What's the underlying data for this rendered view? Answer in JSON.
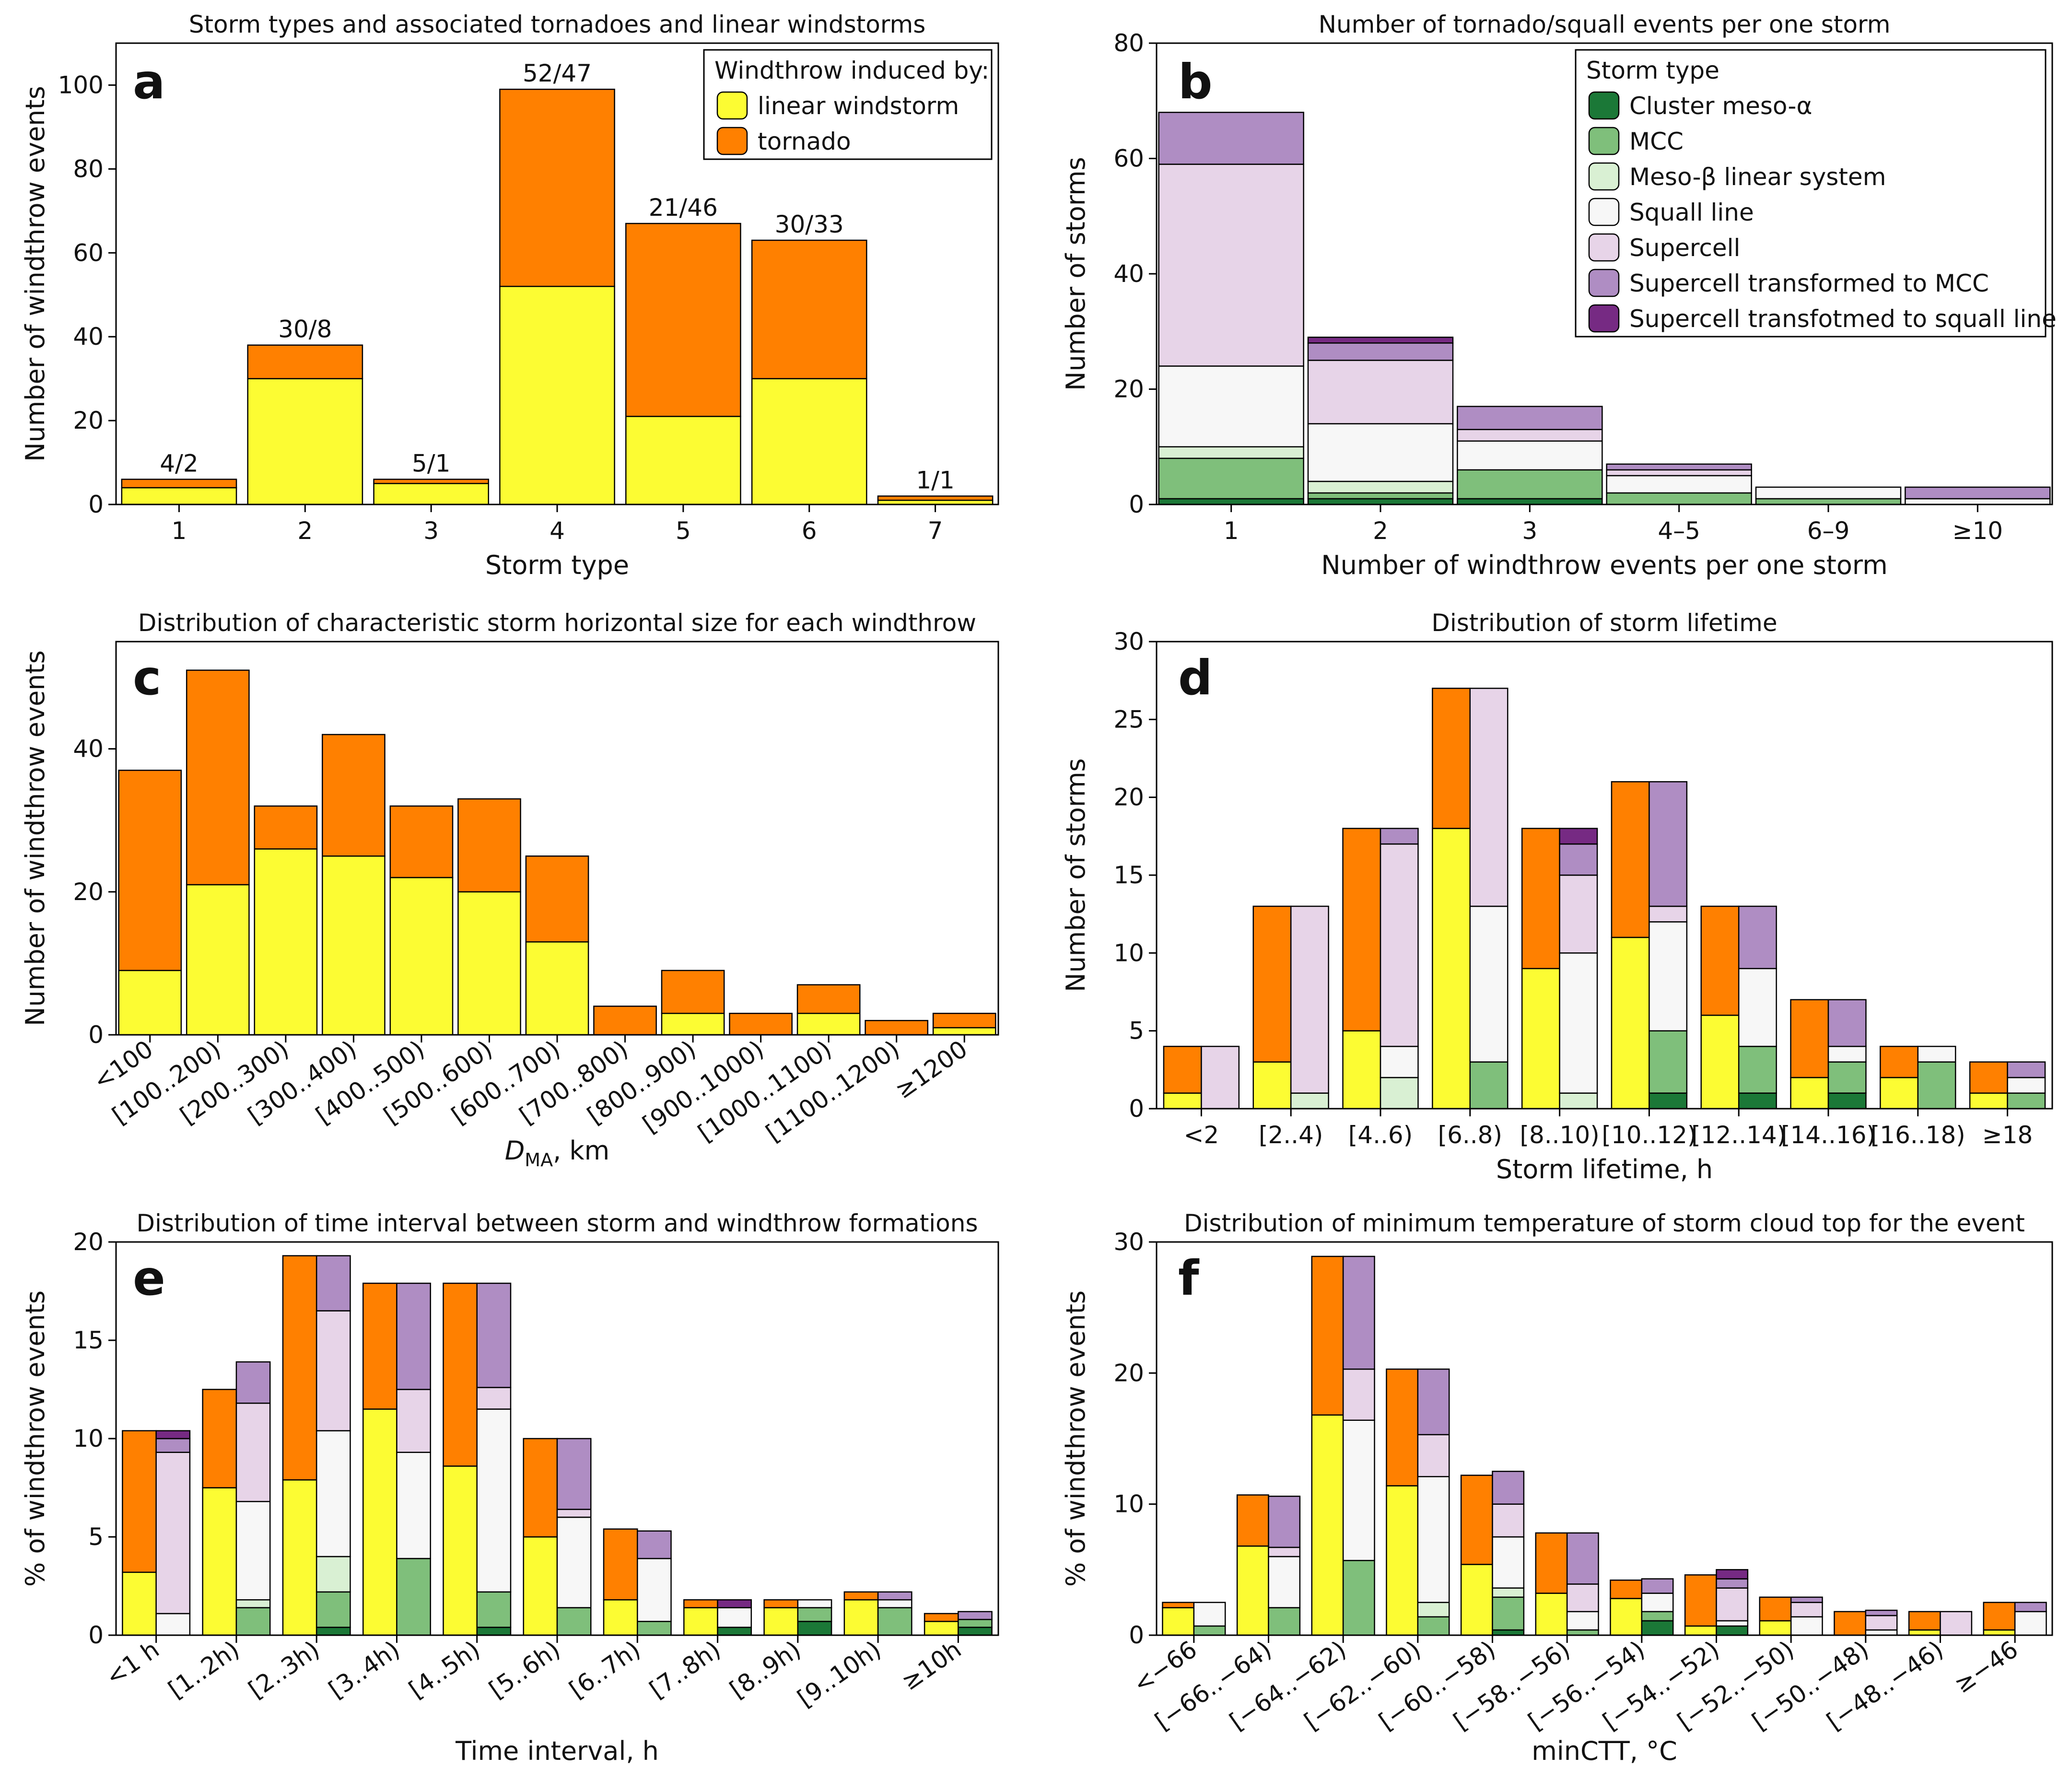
{
  "colors": {
    "linear": "#fcfc33",
    "tornado": "#ff8000",
    "cluster": "#1b7837",
    "mcc": "#7fbf7b",
    "mesobeta": "#d9f0d3",
    "squall": "#f7f7f7",
    "supercell": "#e7d4e8",
    "sc_to_mcc": "#af8dc3",
    "sc_to_squall": "#762a83"
  },
  "chart_data": [
    {
      "id": "a",
      "letter": "a",
      "type": "bar",
      "stacked": true,
      "title": "Storm types and associated tornadoes and linear windstorms",
      "xlabel": "Storm type",
      "ylabel": "Number of windthrow events",
      "ylim": [
        0,
        110
      ],
      "yticks": [
        0,
        20,
        40,
        60,
        80,
        100
      ],
      "categories": [
        "1",
        "2",
        "3",
        "4",
        "5",
        "6",
        "7"
      ],
      "series": [
        {
          "name": "linear windstorm",
          "color": "linear",
          "values": [
            4,
            30,
            5,
            52,
            21,
            30,
            1
          ]
        },
        {
          "name": "tornado",
          "color": "tornado",
          "values": [
            2,
            8,
            1,
            47,
            46,
            33,
            1
          ]
        }
      ],
      "bar_labels": [
        "4/2",
        "30/8",
        "5/1",
        "52/47",
        "21/46",
        "30/33",
        "1/1"
      ],
      "legend": {
        "title": "Windthrow induced by:",
        "position": "top-right"
      }
    },
    {
      "id": "b",
      "letter": "b",
      "type": "bar",
      "stacked": true,
      "title": "Number of tornado/squall events per one storm",
      "xlabel": "Number of windthrow events per one storm",
      "ylabel": "Number of storms",
      "ylim": [
        0,
        80
      ],
      "yticks": [
        0,
        20,
        40,
        60,
        80
      ],
      "categories": [
        "1",
        "2",
        "3",
        "4–5",
        "6–9",
        "≥10"
      ],
      "series": [
        {
          "name": "Cluster meso-α",
          "color": "cluster",
          "values": [
            1,
            1,
            1,
            0,
            0,
            0
          ]
        },
        {
          "name": "MCC",
          "color": "mcc",
          "values": [
            7,
            1,
            5,
            2,
            1,
            0
          ]
        },
        {
          "name": "Meso-β linear system",
          "color": "mesobeta",
          "values": [
            2,
            2,
            0,
            0,
            0,
            0
          ]
        },
        {
          "name": "Squall line",
          "color": "squall",
          "values": [
            14,
            10,
            5,
            3,
            2,
            1
          ]
        },
        {
          "name": "Supercell",
          "color": "supercell",
          "values": [
            35,
            11,
            2,
            1,
            0,
            0
          ]
        },
        {
          "name": "Supercell transformed to MCC",
          "color": "sc_to_mcc",
          "values": [
            9,
            3,
            4,
            1,
            0,
            2
          ]
        },
        {
          "name": "Supercell transfotmed to squall line",
          "color": "sc_to_squall",
          "values": [
            0,
            1,
            0,
            0,
            0,
            0
          ]
        }
      ],
      "legend": {
        "title": "Storm type",
        "position": "top-right"
      }
    },
    {
      "id": "c",
      "letter": "c",
      "type": "bar",
      "stacked": true,
      "title": "Distribution of characteristic storm horizontal size for each windthrow",
      "xlabel_main": "D",
      "xlabel_sub": "MA",
      "xlabel_rest": ", km",
      "ylabel": "Number of windthrow events",
      "ylim": [
        0,
        55
      ],
      "yticks": [
        0,
        20,
        40
      ],
      "categories": [
        "<100",
        "[100..200)",
        "[200..300)",
        "[300..400)",
        "[400..500)",
        "[500..600)",
        "[600..700)",
        "[700..800)",
        "[800..900)",
        "[900..1000)",
        "[1000..1100)",
        "[1100..1200)",
        "≥1200"
      ],
      "series": [
        {
          "name": "linear windstorm",
          "color": "linear",
          "values": [
            9,
            21,
            26,
            25,
            22,
            20,
            13,
            0,
            3,
            0,
            3,
            0,
            1
          ]
        },
        {
          "name": "tornado",
          "color": "tornado",
          "values": [
            28,
            30,
            6,
            17,
            10,
            13,
            12,
            4,
            6,
            3,
            4,
            2,
            2
          ]
        }
      ]
    },
    {
      "id": "d",
      "letter": "d",
      "type": "bar",
      "stacked": true,
      "paired": true,
      "title": "Distribution of storm lifetime",
      "xlabel": "Storm lifetime, h",
      "ylabel": "Number of storms",
      "ylim": [
        0,
        30
      ],
      "yticks": [
        0,
        5,
        10,
        15,
        20,
        25,
        30
      ],
      "categories": [
        "<2",
        "[2..4)",
        "[4..6)",
        "[6..8)",
        "[8..10)",
        "[10..12)",
        "[12..14)",
        "[14..16)",
        "[16..18)",
        "≥18"
      ],
      "left_series": [
        {
          "name": "linear windstorm",
          "color": "linear",
          "values": [
            1,
            3,
            5,
            18,
            9,
            11,
            6,
            2,
            2,
            1
          ]
        },
        {
          "name": "tornado",
          "color": "tornado",
          "values": [
            3,
            10,
            13,
            9,
            9,
            10,
            7,
            5,
            2,
            2
          ]
        }
      ],
      "right_series": [
        {
          "name": "Cluster meso-α",
          "color": "cluster",
          "values": [
            0,
            0,
            0,
            0,
            0,
            1,
            1,
            1,
            0,
            0
          ]
        },
        {
          "name": "MCC",
          "color": "mcc",
          "values": [
            0,
            0,
            0,
            3,
            0,
            4,
            3,
            2,
            3,
            1
          ]
        },
        {
          "name": "Meso-β linear system",
          "color": "mesobeta",
          "values": [
            0,
            1,
            2,
            0,
            1,
            0,
            0,
            0,
            0,
            0
          ]
        },
        {
          "name": "Squall line",
          "color": "squall",
          "values": [
            0,
            0,
            2,
            10,
            9,
            7,
            5,
            1,
            1,
            1
          ]
        },
        {
          "name": "Supercell",
          "color": "supercell",
          "values": [
            4,
            12,
            13,
            14,
            5,
            1,
            0,
            0,
            0,
            0
          ]
        },
        {
          "name": "Supercell transformed to MCC",
          "color": "sc_to_mcc",
          "values": [
            0,
            0,
            1,
            0,
            2,
            8,
            4,
            3,
            0,
            1
          ]
        },
        {
          "name": "Supercell transfotmed to squall line",
          "color": "sc_to_squall",
          "values": [
            0,
            0,
            0,
            0,
            1,
            0,
            0,
            0,
            0,
            0
          ]
        }
      ]
    },
    {
      "id": "e",
      "letter": "e",
      "type": "bar",
      "stacked": true,
      "paired": true,
      "title": "Distribution of time interval between storm and windthrow formations",
      "xlabel": "Time interval, h",
      "ylabel": "% of windthrow events",
      "ylim": [
        0,
        20
      ],
      "yticks": [
        0,
        5,
        10,
        15,
        20
      ],
      "categories": [
        "<1 h",
        "[1..2h)",
        "[2..3h)",
        "[3..4h)",
        "[4..5h)",
        "[5..6h)",
        "[6..7h)",
        "[7..8h)",
        "[8..9h)",
        "[9..10h)",
        "≥10h"
      ],
      "left_series": [
        {
          "name": "linear windstorm",
          "color": "linear",
          "values": [
            3.2,
            7.5,
            7.9,
            11.5,
            8.6,
            5.0,
            1.8,
            1.4,
            1.4,
            1.8,
            0.7
          ]
        },
        {
          "name": "tornado",
          "color": "tornado",
          "values": [
            7.2,
            5.0,
            11.4,
            6.4,
            9.3,
            5.0,
            3.6,
            0.4,
            0.4,
            0.4,
            0.4
          ]
        }
      ],
      "right_series": [
        {
          "name": "Cluster meso-α",
          "color": "cluster",
          "values": [
            0,
            0,
            0.4,
            0,
            0.4,
            0,
            0,
            0.4,
            0.7,
            0,
            0.4
          ]
        },
        {
          "name": "MCC",
          "color": "mcc",
          "values": [
            0,
            1.4,
            1.8,
            3.9,
            1.8,
            1.4,
            0.7,
            0,
            0.7,
            1.4,
            0.4
          ]
        },
        {
          "name": "Meso-β linear system",
          "color": "mesobeta",
          "values": [
            0,
            0.4,
            1.8,
            0,
            0,
            0,
            0,
            0,
            0,
            0,
            0
          ]
        },
        {
          "name": "Squall line",
          "color": "squall",
          "values": [
            1.1,
            5.0,
            6.4,
            5.4,
            9.3,
            4.6,
            3.2,
            1.0,
            0.4,
            0.4,
            0
          ]
        },
        {
          "name": "Supercell",
          "color": "supercell",
          "values": [
            8.2,
            5.0,
            6.1,
            3.2,
            1.1,
            0.4,
            0,
            0,
            0,
            0,
            0
          ]
        },
        {
          "name": "Supercell transformed to MCC",
          "color": "sc_to_mcc",
          "values": [
            0.7,
            2.1,
            2.8,
            5.4,
            5.3,
            3.6,
            1.4,
            0,
            0,
            0.4,
            0.4
          ]
        },
        {
          "name": "Supercell transfotmed to squall line",
          "color": "sc_to_squall",
          "values": [
            0.4,
            0,
            0,
            0,
            0,
            0,
            0,
            0.4,
            0,
            0,
            0
          ]
        }
      ]
    },
    {
      "id": "f",
      "letter": "f",
      "type": "bar",
      "stacked": true,
      "paired": true,
      "title": "Distribution of minimum temperature of storm cloud top for the event",
      "xlabel": "minCTT, °C",
      "ylabel": "% of windthrow events",
      "ylim": [
        0,
        30
      ],
      "yticks": [
        0,
        10,
        20,
        30
      ],
      "categories": [
        "<−66",
        "[−66..−64)",
        "[−64..−62)",
        "[−62..−60)",
        "[−60..−58)",
        "[−58..−56)",
        "[−56..−54)",
        "[−54..−52)",
        "[−52..−50)",
        "[−50..−48)",
        "[−48..−46)",
        "≥−46"
      ],
      "left_series": [
        {
          "name": "linear windstorm",
          "color": "linear",
          "values": [
            2.1,
            6.8,
            16.8,
            11.4,
            5.4,
            3.2,
            2.8,
            0.7,
            1.1,
            0,
            0.4,
            0.4
          ]
        },
        {
          "name": "tornado",
          "color": "tornado",
          "values": [
            0.4,
            3.9,
            12.1,
            8.9,
            6.8,
            4.6,
            1.4,
            3.9,
            1.8,
            1.8,
            1.4,
            2.1
          ]
        }
      ],
      "right_series": [
        {
          "name": "Cluster meso-α",
          "color": "cluster",
          "values": [
            0,
            0,
            0,
            0,
            0.4,
            0,
            1.1,
            0.7,
            0,
            0,
            0,
            0
          ]
        },
        {
          "name": "MCC",
          "color": "mcc",
          "values": [
            0.7,
            2.1,
            5.7,
            1.4,
            2.5,
            0.4,
            0.7,
            0,
            0,
            0,
            0,
            0
          ]
        },
        {
          "name": "Meso-β linear system",
          "color": "mesobeta",
          "values": [
            0,
            0,
            0,
            1.1,
            0.7,
            0,
            0,
            0,
            0,
            0,
            0,
            0
          ]
        },
        {
          "name": "Squall line",
          "color": "squall",
          "values": [
            1.8,
            3.9,
            10.7,
            9.6,
            3.9,
            1.4,
            1.4,
            0.4,
            1.4,
            0.4,
            0,
            1.8
          ]
        },
        {
          "name": "Supercell",
          "color": "supercell",
          "values": [
            0,
            0.7,
            3.9,
            3.2,
            2.5,
            2.1,
            0,
            2.5,
            1.1,
            1.1,
            1.8,
            0
          ]
        },
        {
          "name": "Supercell transformed to MCC",
          "color": "sc_to_mcc",
          "values": [
            0,
            3.9,
            8.6,
            5.0,
            2.5,
            3.9,
            1.1,
            0.7,
            0.4,
            0.4,
            0,
            0.7
          ]
        },
        {
          "name": "Supercell transfotmed to squall line",
          "color": "sc_to_squall",
          "values": [
            0,
            0,
            0,
            0,
            0,
            0,
            0,
            0.7,
            0,
            0,
            0,
            0
          ]
        }
      ]
    }
  ]
}
